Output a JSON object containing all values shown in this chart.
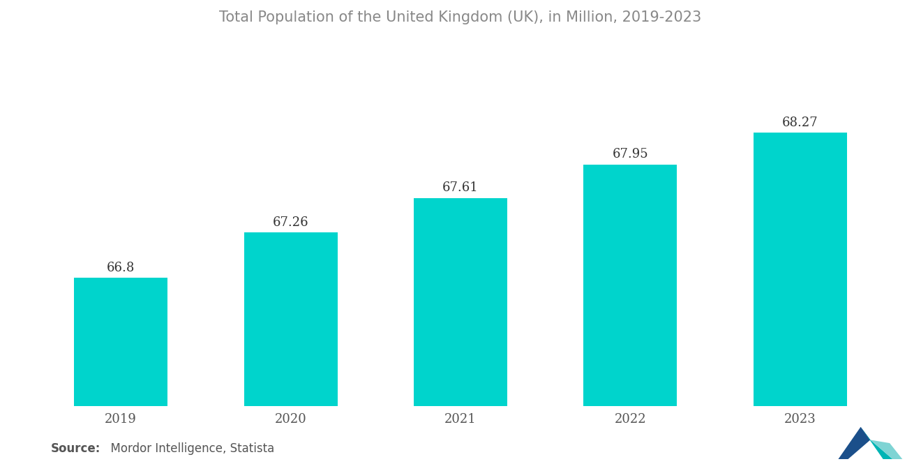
{
  "title": "Total Population of the United Kingdom (UK), in Million, 2019-2023",
  "categories": [
    "2019",
    "2020",
    "2021",
    "2022",
    "2023"
  ],
  "values": [
    66.8,
    67.26,
    67.61,
    67.95,
    68.27
  ],
  "bar_color": "#00D4CC",
  "background_color": "#FFFFFF",
  "title_color": "#888888",
  "label_color": "#333333",
  "tick_color": "#555555",
  "source_bold": "Source:",
  "source_detail": "  Mordor Intelligence, Statista",
  "title_fontsize": 15,
  "label_fontsize": 13,
  "tick_fontsize": 13,
  "source_fontsize": 12,
  "ylim_min": 65.5,
  "ylim_max": 69.2,
  "bar_width": 0.55
}
